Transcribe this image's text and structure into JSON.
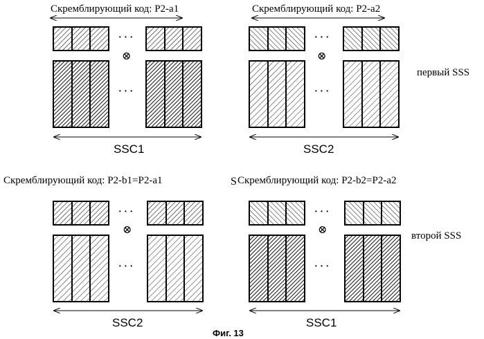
{
  "top_left": {
    "code_label": "Скремблирующий код: P2-a1",
    "ssc_label": "SSC1"
  },
  "top_right": {
    "code_label": "Скремблирующий код: P2-a2",
    "ssc_label": "SSC2"
  },
  "bottom_left": {
    "code_label": "Скремблирующий код: P2-b1=P2-a1",
    "ssc_label": "SSC2"
  },
  "bottom_right": {
    "code_label": "Скремблирующий код: P2-b2=P2-a2",
    "ssc_label": "SSC1"
  },
  "row_labels": {
    "first": "первый SSS",
    "second": "второй SSS"
  },
  "dots": "· · ·",
  "multiply_symbol": "⊗",
  "figure_caption": "Фиг. 13",
  "stray_mark": "S"
}
